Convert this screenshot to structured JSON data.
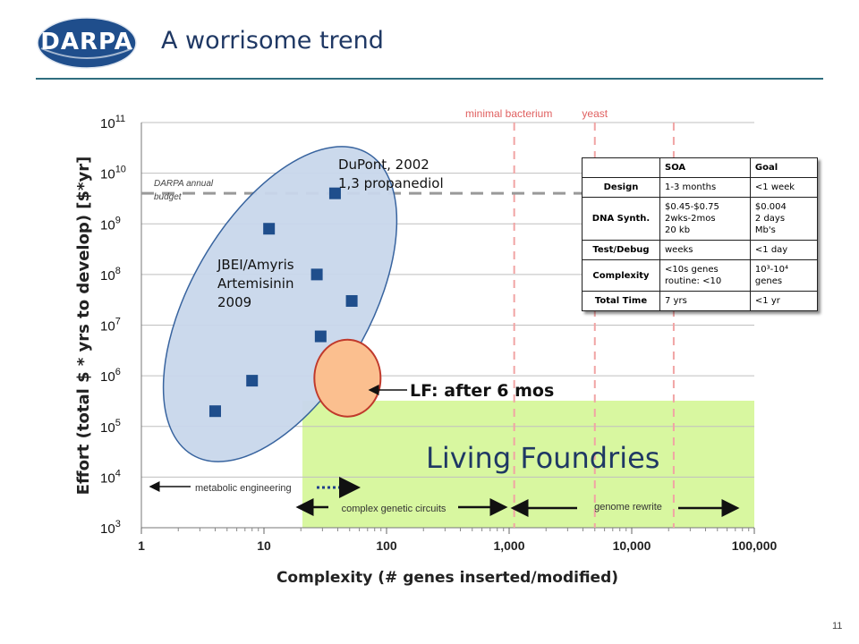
{
  "slide": {
    "logo_text": "DARPA",
    "title": "A worrisome trend",
    "page_number": "11"
  },
  "colors": {
    "title": "#1f3864",
    "points": "#1f4e8c",
    "ellipse_fill": "#c9d7ec",
    "ellipse_stroke": "#2e5c9a",
    "highlight_fill": "#fbbf8f",
    "highlight_stroke": "#c0392b",
    "foundry_zone": "#d8f7a0",
    "reference_lines": "#f1a4a4"
  },
  "chart_data": {
    "type": "scatter",
    "x_scale": "log",
    "y_scale": "log",
    "xlabel": "Complexity (# genes inserted/modified)",
    "ylabel": "Effort (total $ * yrs to develop) [$*yr]",
    "xlim": [
      1,
      100000
    ],
    "ylim": [
      1000,
      100000000000
    ],
    "x_ticks": [
      {
        "value": 1,
        "label": "1"
      },
      {
        "value": 10,
        "label": "10"
      },
      {
        "value": 100,
        "label": "100"
      },
      {
        "value": 1000,
        "label": "1,000"
      },
      {
        "value": 10000,
        "label": "10,000"
      },
      {
        "value": 100000,
        "label": "100,000"
      }
    ],
    "y_ticks": [
      {
        "exp": 3,
        "base": "10",
        "sup": "3"
      },
      {
        "exp": 4,
        "base": "10",
        "sup": "4"
      },
      {
        "exp": 5,
        "base": "10",
        "sup": "5"
      },
      {
        "exp": 6,
        "base": "10",
        "sup": "6"
      },
      {
        "exp": 7,
        "base": "10",
        "sup": "7"
      },
      {
        "exp": 8,
        "base": "10",
        "sup": "8"
      },
      {
        "exp": 9,
        "base": "10",
        "sup": "9"
      },
      {
        "exp": 10,
        "base": "10",
        "sup": "10"
      },
      {
        "exp": 11,
        "base": "10",
        "sup": "11"
      }
    ],
    "grid": "horizontal",
    "points": [
      {
        "x": 4,
        "y": 200000
      },
      {
        "x": 8,
        "y": 800000
      },
      {
        "x": 11,
        "y": 800000000
      },
      {
        "x": 27,
        "y": 100000000
      },
      {
        "x": 29,
        "y": 6000000
      },
      {
        "x": 38,
        "y": 4000000000
      },
      {
        "x": 52,
        "y": 30000000
      }
    ],
    "highlight": {
      "x": 48,
      "y": 900000,
      "label": "LF: after 6 mos"
    },
    "ellipse_label_lines": [
      "JBEI/Amyris",
      "Artemisinin",
      "2009"
    ],
    "dupont_label_lines": [
      "DuPont, 2002",
      "1,3 propanediol"
    ],
    "budget_line": {
      "y": 4000000000,
      "label_lines": [
        "DARPA annual",
        "budget"
      ]
    },
    "reference_lines": [
      {
        "x": 1100,
        "label": "minimal bacterium"
      },
      {
        "x": 5000,
        "label": "yeast"
      },
      {
        "x": 22000,
        "label": ""
      }
    ],
    "foundry_zone": {
      "label": "Living Foundries"
    },
    "ranges": [
      {
        "label": "metabolic engineering",
        "from": 1,
        "to": 40
      },
      {
        "label": "complex genetic circuits",
        "from": 25,
        "to": 1100
      },
      {
        "label": "genome rewrite",
        "from": 1100,
        "to": 100000
      }
    ]
  },
  "table": {
    "headers": [
      "",
      "SOA",
      "Goal"
    ],
    "rows": [
      {
        "label": "Design",
        "soa": "1-3 months",
        "goal": "<1 week"
      },
      {
        "label": "DNA Synth.",
        "soa": "$0.45-$0.75\n2wks-2mos\n20 kb",
        "goal": "$0.004\n2 days\nMb's"
      },
      {
        "label": "Test/Debug",
        "soa": "weeks",
        "goal": "<1 day"
      },
      {
        "label": "Complexity",
        "soa": "<10s genes\nroutine: <10",
        "goal": "10³-10⁴\ngenes"
      },
      {
        "label": "Total Time",
        "soa": "7 yrs",
        "goal": "<1 yr"
      }
    ]
  }
}
